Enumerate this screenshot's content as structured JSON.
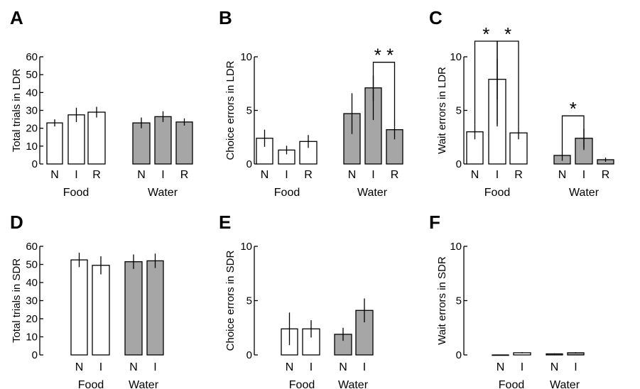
{
  "colors": {
    "food": "#ffffff",
    "water": "#a6a6a6",
    "stroke": "#000000"
  },
  "chart_data": [
    {
      "panel": "A",
      "type": "bar",
      "ylabel": "Total trials in LDR",
      "ylim": [
        0,
        60
      ],
      "yticks": [
        0,
        10,
        20,
        30,
        40,
        50,
        60
      ],
      "groups": [
        "Food",
        "Water"
      ],
      "categories": [
        "N",
        "I",
        "R"
      ],
      "series": [
        {
          "name": "Food",
          "values": [
            23,
            27.5,
            29
          ],
          "errors": [
            2,
            4,
            3
          ]
        },
        {
          "name": "Water",
          "values": [
            23,
            26.5,
            23.5
          ],
          "errors": [
            3,
            3,
            2
          ]
        }
      ],
      "significance": []
    },
    {
      "panel": "B",
      "type": "bar",
      "ylabel": "Choice errors in LDR",
      "ylim": [
        0,
        10
      ],
      "yticks": [
        0,
        5,
        10
      ],
      "groups": [
        "Food",
        "Water"
      ],
      "categories": [
        "N",
        "I",
        "R"
      ],
      "series": [
        {
          "name": "Food",
          "values": [
            2.4,
            1.3,
            2.1
          ],
          "errors": [
            0.8,
            0.4,
            0.6
          ]
        },
        {
          "name": "Water",
          "values": [
            4.7,
            7.1,
            3.2
          ],
          "errors": [
            1.9,
            1.2,
            0.9
          ]
        }
      ],
      "significance": [
        {
          "group": 1,
          "from": 1,
          "to": 2,
          "label": "* *"
        }
      ]
    },
    {
      "panel": "C",
      "type": "bar",
      "ylabel": "Wait errors in LDR",
      "ylim": [
        0,
        10
      ],
      "yticks": [
        0,
        5,
        10
      ],
      "groups": [
        "Food",
        "Water"
      ],
      "categories": [
        "N",
        "I",
        "R"
      ],
      "series": [
        {
          "name": "Food",
          "values": [
            3.0,
            7.9,
            2.9
          ],
          "errors": [
            0.7,
            1.9,
            0.6
          ]
        },
        {
          "name": "Water",
          "values": [
            0.8,
            2.4,
            0.4
          ],
          "errors": [
            0.5,
            0.9,
            0.2
          ]
        }
      ],
      "significance": [
        {
          "group": 0,
          "from": 0,
          "to": 1,
          "label": "*"
        },
        {
          "group": 0,
          "from": 1,
          "to": 2,
          "label": "*"
        },
        {
          "group": 1,
          "from": 0,
          "to": 1,
          "label": "*"
        }
      ]
    },
    {
      "panel": "D",
      "type": "bar",
      "ylabel": "Total trials in SDR",
      "ylim": [
        0,
        60
      ],
      "yticks": [
        0,
        10,
        20,
        30,
        40,
        50,
        60
      ],
      "groups": [
        "Food",
        "Water"
      ],
      "categories": [
        "N",
        "I"
      ],
      "series": [
        {
          "name": "Food",
          "values": [
            52.5,
            49.5
          ],
          "errors": [
            4,
            5
          ]
        },
        {
          "name": "Water",
          "values": [
            51.5,
            52
          ],
          "errors": [
            4,
            4
          ]
        }
      ],
      "significance": []
    },
    {
      "panel": "E",
      "type": "bar",
      "ylabel": "Choice errors in SDR",
      "ylim": [
        0,
        10
      ],
      "yticks": [
        0,
        5,
        10
      ],
      "groups": [
        "Food",
        "Water"
      ],
      "categories": [
        "N",
        "I"
      ],
      "series": [
        {
          "name": "Food",
          "values": [
            2.4,
            2.4
          ],
          "errors": [
            1.5,
            0.8
          ]
        },
        {
          "name": "Water",
          "values": [
            1.9,
            4.1
          ],
          "errors": [
            0.6,
            1.1
          ]
        }
      ],
      "significance": []
    },
    {
      "panel": "F",
      "type": "bar",
      "ylabel": "Wait errors in SDR",
      "ylim": [
        0,
        10
      ],
      "yticks": [
        0,
        5,
        10
      ],
      "groups": [
        "Food",
        "Water"
      ],
      "categories": [
        "N",
        "I"
      ],
      "series": [
        {
          "name": "Food",
          "values": [
            0.0,
            0.2
          ],
          "errors": [
            0,
            0.05
          ]
        },
        {
          "name": "Water",
          "values": [
            0.1,
            0.2
          ],
          "errors": [
            0.05,
            0.05
          ]
        }
      ],
      "significance": []
    }
  ]
}
